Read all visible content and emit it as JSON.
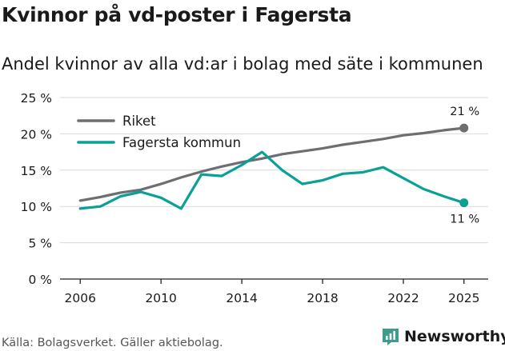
{
  "title": "Kvinnor på vd-poster i Fagersta",
  "subtitle": "Andel kvinnor av alla vd:ar i bolag med säte i kommunen",
  "source": "Källa: Bolagsverket. Gäller aktiebolag.",
  "brand": {
    "name": "Newsworthy",
    "color": "#3d9c8c",
    "icon": "newsworthy-logo-icon"
  },
  "chart_data": {
    "type": "line",
    "title": "Kvinnor på vd-poster i Fagersta",
    "subtitle": "Andel kvinnor av alla vd:ar i bolag med säte i kommunen",
    "xlabel": "",
    "ylabel": "",
    "x": [
      2006,
      2007,
      2008,
      2009,
      2010,
      2011,
      2012,
      2013,
      2014,
      2015,
      2016,
      2017,
      2018,
      2019,
      2020,
      2021,
      2022,
      2023,
      2024,
      2025
    ],
    "xlim": [
      2005,
      2026.2
    ],
    "ylim": [
      0,
      25
    ],
    "yticks": [
      0,
      5,
      10,
      15,
      20,
      25
    ],
    "ytick_labels": [
      "0 %",
      "5 %",
      "10 %",
      "15 %",
      "20 %",
      "25 %"
    ],
    "xticks": [
      2006,
      2010,
      2014,
      2018,
      2022,
      2025
    ],
    "xtick_labels": [
      "2006",
      "2010",
      "2014",
      "2018",
      "2022",
      "2025"
    ],
    "grid": "horizontal",
    "legend": "top-left",
    "series": [
      {
        "name": "Riket",
        "color": "#6d6e71",
        "values": [
          10.8,
          11.3,
          11.9,
          12.3,
          13.1,
          14.0,
          14.8,
          15.5,
          16.1,
          16.6,
          17.2,
          17.6,
          18.0,
          18.5,
          18.9,
          19.3,
          19.8,
          20.1,
          20.5,
          20.8
        ],
        "end_label": "21 %"
      },
      {
        "name": "Fagersta kommun",
        "color": "#0aa096",
        "values": [
          9.7,
          10.0,
          11.4,
          12.0,
          11.2,
          9.7,
          14.4,
          14.2,
          15.7,
          17.5,
          15.0,
          13.1,
          13.6,
          14.5,
          14.7,
          15.4,
          13.9,
          12.4,
          11.4,
          10.5
        ],
        "end_label": "11 %"
      }
    ]
  }
}
